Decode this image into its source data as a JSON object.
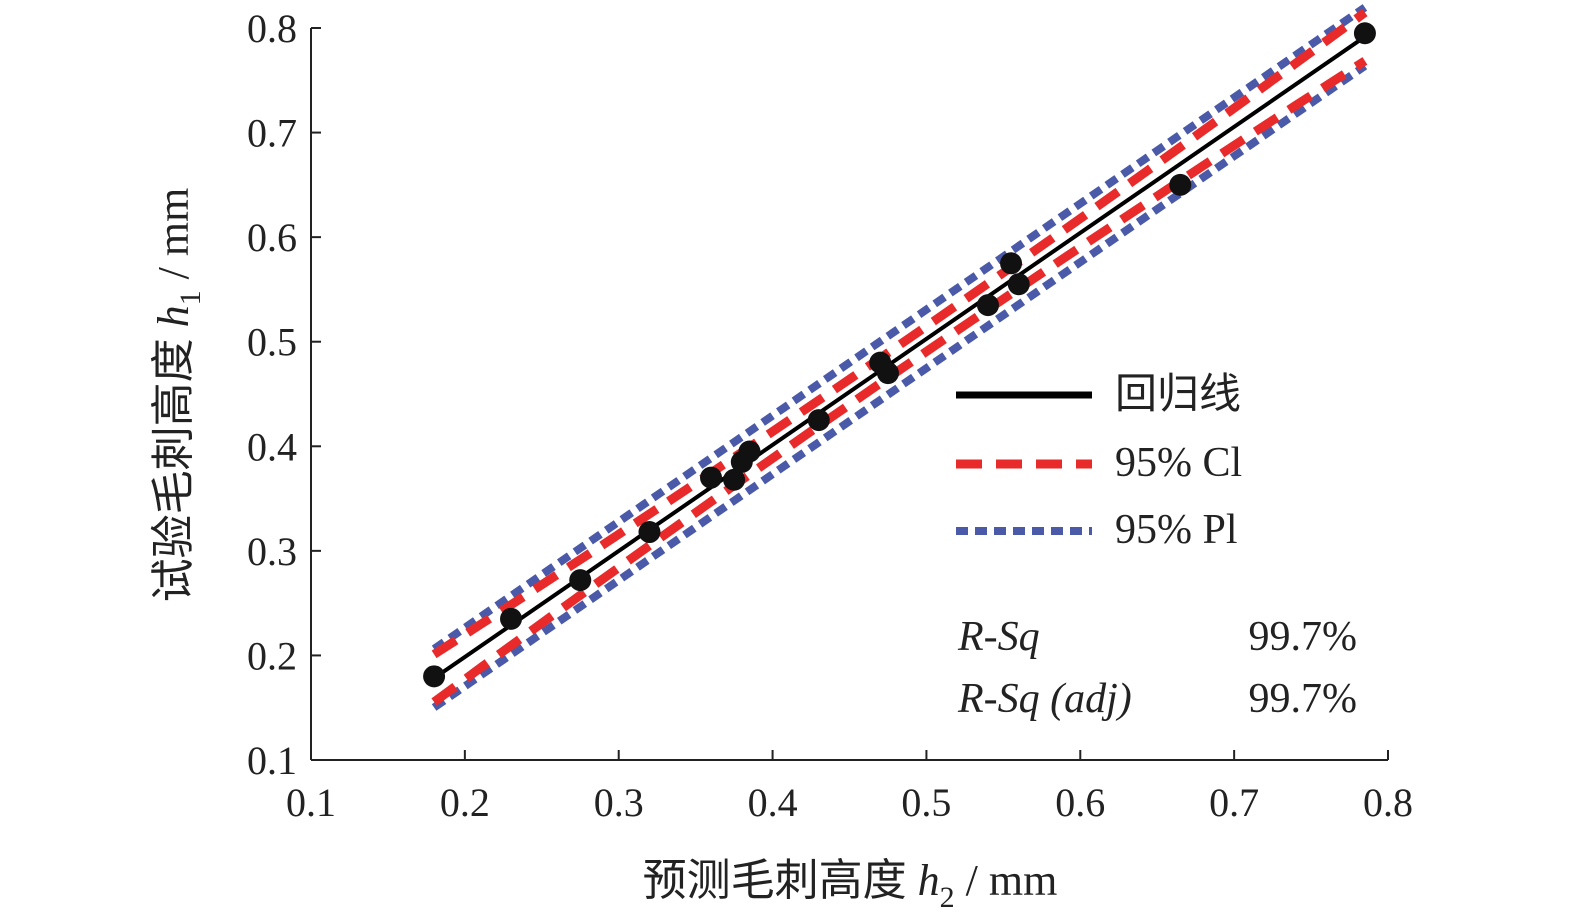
{
  "chart_data": {
    "type": "scatter",
    "xlabel": {
      "prefix": "预测毛刺高度 ",
      "symbol": "h",
      "sub": "2",
      "suffix": " / mm"
    },
    "ylabel": {
      "prefix": "试验毛刺高度 ",
      "symbol": "h",
      "sub": "1",
      "suffix": " / mm"
    },
    "xlim": [
      0.1,
      0.8
    ],
    "ylim": [
      0.1,
      0.8
    ],
    "xticks": [
      "0.1",
      "0.2",
      "0.3",
      "0.4",
      "0.5",
      "0.6",
      "0.7",
      "0.8"
    ],
    "yticks": [
      "0.1",
      "0.2",
      "0.3",
      "0.4",
      "0.5",
      "0.6",
      "0.7",
      "0.8"
    ],
    "grid": false,
    "legend_position": "right",
    "points": {
      "x": [
        0.18,
        0.23,
        0.275,
        0.32,
        0.36,
        0.375,
        0.38,
        0.385,
        0.43,
        0.47,
        0.475,
        0.54,
        0.555,
        0.56,
        0.665,
        0.785
      ],
      "y": [
        0.18,
        0.235,
        0.272,
        0.318,
        0.37,
        0.368,
        0.385,
        0.395,
        0.425,
        0.48,
        0.47,
        0.535,
        0.575,
        0.555,
        0.65,
        0.795
      ]
    },
    "regression": {
      "x0": 0.18,
      "x1": 0.785,
      "slope": 1.014,
      "intercept": -0.0043
    },
    "ci_halfwidth": {
      "center": 0.48,
      "min": 0.012,
      "curv": 0.12
    },
    "pi_halfwidth": 0.028,
    "series": [
      {
        "name": "回归线",
        "color": "#000000",
        "style": "solid"
      },
      {
        "name": "95% Cl",
        "color": "#e82a2a",
        "style": "dashed"
      },
      {
        "name": "95% Pl",
        "color": "#4a5aa8",
        "style": "dotted"
      }
    ],
    "stats": [
      {
        "label": "R-Sq",
        "value": "99.7%"
      },
      {
        "label": "R-Sq (adj)",
        "value": "99.7%"
      }
    ]
  }
}
